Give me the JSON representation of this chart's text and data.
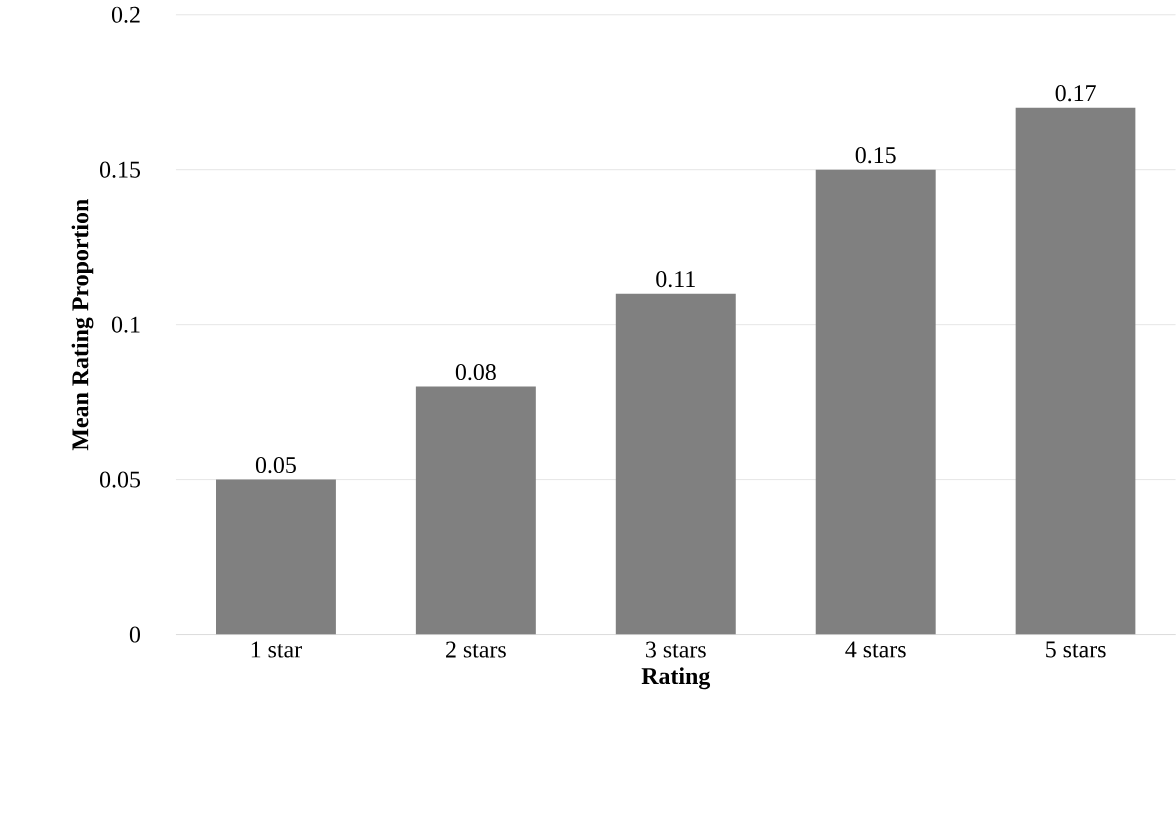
{
  "chart_data": {
    "type": "bar",
    "xlabel": "Rating",
    "ylabel": "Mean Rating Proportion",
    "categories": [
      "1 star",
      "2 stars",
      "3 stars",
      "4 stars",
      "5 stars"
    ],
    "values": [
      0.05,
      0.08,
      0.11,
      0.15,
      0.17
    ],
    "color": "#808080",
    "ylim": [
      0,
      0.2
    ],
    "yticks": [
      0,
      0.05,
      0.1,
      0.15,
      0.2
    ],
    "grid": "y",
    "data_labels": true
  }
}
